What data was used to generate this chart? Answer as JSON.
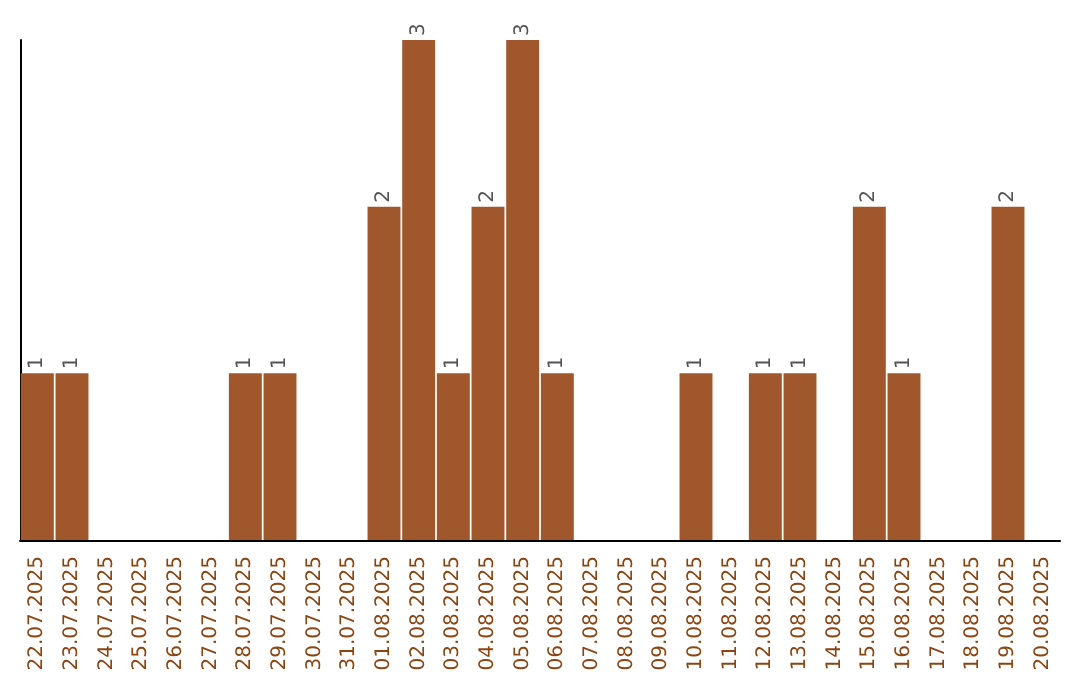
{
  "chart_data": {
    "type": "bar",
    "categories": [
      "22.07.2025",
      "23.07.2025",
      "24.07.2025",
      "25.07.2025",
      "26.07.2025",
      "27.07.2025",
      "28.07.2025",
      "29.07.2025",
      "30.07.2025",
      "31.07.2025",
      "01.08.2025",
      "02.08.2025",
      "03.08.2025",
      "04.08.2025",
      "05.08.2025",
      "06.08.2025",
      "07.08.2025",
      "08.08.2025",
      "09.08.2025",
      "10.08.2025",
      "11.08.2025",
      "12.08.2025",
      "13.08.2025",
      "14.08.2025",
      "15.08.2025",
      "16.08.2025",
      "17.08.2025",
      "18.08.2025",
      "19.08.2025",
      "20.08.2025"
    ],
    "values": [
      1,
      1,
      0,
      0,
      0,
      0,
      1,
      1,
      0,
      0,
      2,
      3,
      1,
      2,
      3,
      1,
      0,
      0,
      0,
      1,
      0,
      1,
      1,
      0,
      2,
      1,
      0,
      0,
      2,
      0
    ],
    "value_labels": [
      "1",
      "1",
      null,
      null,
      null,
      null,
      "1",
      "1",
      null,
      null,
      "2",
      "3",
      "1",
      "2",
      "3",
      "1",
      null,
      null,
      null,
      "1",
      null,
      "1",
      "1",
      null,
      "2",
      "1",
      null,
      null,
      "2",
      null
    ],
    "color": "#a0572b",
    "ylim": [
      0,
      3
    ],
    "tick_labels": "x"
  }
}
